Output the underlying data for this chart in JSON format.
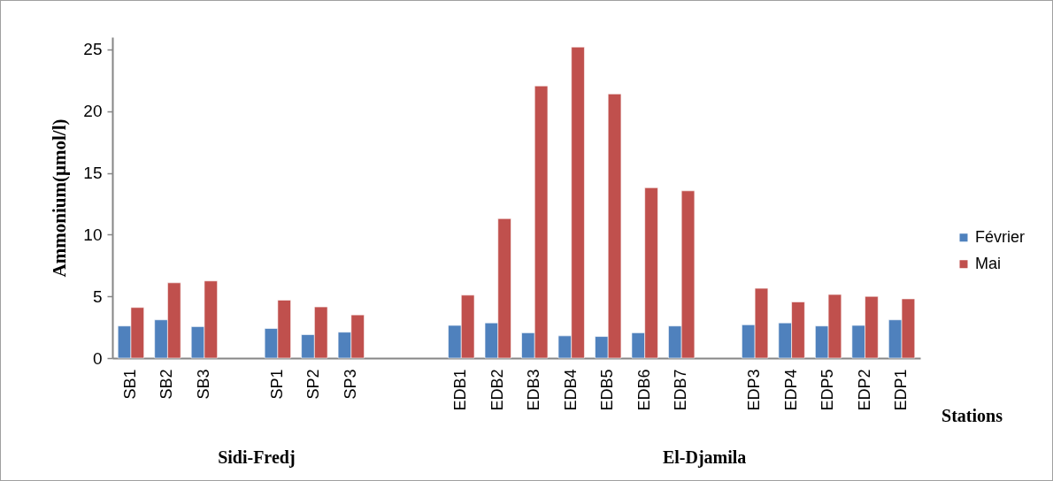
{
  "chart_data": {
    "type": "bar",
    "ylabel": "Ammonium(µmol/l)",
    "xlabel": "Stations",
    "categories": [
      "SB1",
      "SB2",
      "SB3",
      null,
      "SP1",
      "SP2",
      "SP3",
      null,
      null,
      "EDB1",
      "EDB2",
      "EDB3",
      "EDB4",
      "EDB5",
      "EDB6",
      "EDB7",
      null,
      "EDP3",
      "EDP4",
      "EDP5",
      "EDP2",
      "EDP1"
    ],
    "series": [
      {
        "name": "Février",
        "color": "#4f81bd",
        "values": [
          2.6,
          3.1,
          2.55,
          null,
          2.4,
          1.9,
          2.1,
          null,
          null,
          2.65,
          2.85,
          2.05,
          1.8,
          1.75,
          2.05,
          2.6,
          null,
          2.7,
          2.85,
          2.6,
          2.65,
          3.1
        ]
      },
      {
        "name": "Mai",
        "color": "#c0504d",
        "values": [
          4.1,
          6.1,
          6.25,
          null,
          4.7,
          4.15,
          3.5,
          null,
          null,
          5.1,
          11.3,
          22.05,
          25.2,
          21.4,
          13.8,
          13.55,
          null,
          5.65,
          4.55,
          5.15,
          5.0,
          4.8
        ]
      }
    ],
    "ylim": [
      0,
      26
    ],
    "yticks": [
      0,
      5,
      10,
      15,
      20,
      25
    ],
    "grid": false,
    "legend": "right",
    "annotations": [
      "Sidi-Fredj",
      "El-Djamila"
    ]
  }
}
